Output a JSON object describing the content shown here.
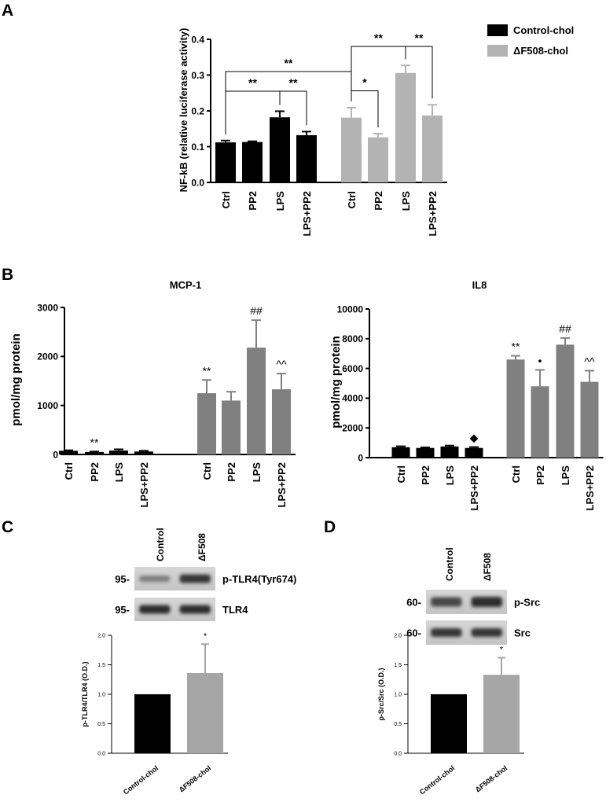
{
  "panels": {
    "A": "A",
    "B": "B",
    "C": "C",
    "D": "D"
  },
  "colors": {
    "control": "#000000",
    "df508_A": "#b3b3b3",
    "df508_B": "#808080",
    "df508_CD": "#a6a6a6"
  },
  "chart_data": [
    {
      "id": "A",
      "type": "bar",
      "title": "",
      "ylabel": "NF-kB (relative luciferase activity)",
      "xlabel": "",
      "ylim": [
        0,
        0.4
      ],
      "yticks": [
        "0.0",
        "0.1",
        "0.2",
        "0.3",
        "0.4"
      ],
      "ytick_values": [
        0,
        0.1,
        0.2,
        0.3,
        0.4
      ],
      "categories": [
        "Ctrl",
        "PP2",
        "LPS",
        "LPS+PP2",
        "Ctrl",
        "PP2",
        "LPS",
        "LPS+PP2"
      ],
      "groups": [
        "Control-chol",
        "Control-chol",
        "Control-chol",
        "Control-chol",
        "ΔF508-chol",
        "ΔF508-chol",
        "ΔF508-chol",
        "ΔF508-chol"
      ],
      "values": [
        0.112,
        0.113,
        0.182,
        0.132,
        0.181,
        0.126,
        0.306,
        0.187
      ],
      "errors": [
        0.005,
        0.002,
        0.017,
        0.01,
        0.028,
        0.01,
        0.021,
        0.03
      ],
      "legend": [
        {
          "name": "Control-chol",
          "color": "#000000"
        },
        {
          "name": "ΔF508-chol",
          "color": "#b3b3b3"
        }
      ],
      "legend_position": "top-right",
      "annotations": [
        {
          "text": "**",
          "from": 0,
          "to": 2
        },
        {
          "text": "**",
          "from": 2,
          "to": 3
        },
        {
          "text": "**",
          "from": 0,
          "to": 4
        },
        {
          "text": "*",
          "from": 4,
          "to": 5
        },
        {
          "text": "**",
          "from": 4,
          "to": 6
        },
        {
          "text": "**",
          "from": 6,
          "to": 7
        }
      ]
    },
    {
      "id": "B1",
      "type": "bar",
      "title": "MCP-1",
      "ylabel": "pmol/mg protein",
      "xlabel": "",
      "ylim": [
        0,
        3000
      ],
      "yticks": [
        "0",
        "1000",
        "2000",
        "3000"
      ],
      "ytick_values": [
        0,
        1000,
        2000,
        3000
      ],
      "categories": [
        "Ctrl",
        "PP2",
        "LPS",
        "LPS+PP2",
        "Ctrl",
        "PP2",
        "LPS",
        "LPS+PP2"
      ],
      "groups": [
        "Control-chol",
        "Control-chol",
        "Control-chol",
        "Control-chol",
        "ΔF508-chol",
        "ΔF508-chol",
        "ΔF508-chol",
        "ΔF508-chol"
      ],
      "values": [
        75,
        50,
        80,
        60,
        1250,
        1100,
        2180,
        1330
      ],
      "errors": [
        10,
        10,
        25,
        15,
        270,
        180,
        560,
        320
      ],
      "marks": [
        "",
        "**",
        "",
        "",
        "**",
        "",
        "##",
        "^^"
      ]
    },
    {
      "id": "B2",
      "type": "bar",
      "title": "IL8",
      "ylabel": "pmol/mg protein",
      "xlabel": "",
      "ylim": [
        0,
        10000
      ],
      "yticks": [
        "0",
        "2000",
        "4000",
        "6000",
        "8000",
        "10000"
      ],
      "ytick_values": [
        0,
        2000,
        4000,
        6000,
        8000,
        10000
      ],
      "categories": [
        "Ctrl",
        "PP2",
        "LPS",
        "LPS+PP2",
        "Ctrl",
        "PP2",
        "LPS",
        "LPS+PP2"
      ],
      "groups": [
        "Control-chol",
        "Control-chol",
        "Control-chol",
        "Control-chol",
        "ΔF508-chol",
        "ΔF508-chol",
        "ΔF508-chol",
        "ΔF508-chol"
      ],
      "values": [
        700,
        650,
        750,
        650,
        6600,
        4800,
        7600,
        5100
      ],
      "errors": [
        60,
        40,
        60,
        60,
        250,
        1100,
        450,
        750
      ],
      "marks": [
        "",
        "",
        "",
        "◆",
        "**",
        "•",
        "##",
        "^^"
      ]
    },
    {
      "id": "C",
      "type": "bar",
      "title": "",
      "ylabel": "p-TLR4/TLR4 (O.D.)",
      "xlabel": "",
      "ylim": [
        0,
        2.0
      ],
      "yticks": [
        "0.0",
        "0.5",
        "1.0",
        "1.5",
        "2.0"
      ],
      "ytick_values": [
        0,
        0.5,
        1.0,
        1.5,
        2.0
      ],
      "categories": [
        "Control-chol",
        "ΔF508-chol"
      ],
      "values": [
        1.0,
        1.36
      ],
      "errors": [
        0,
        0.49
      ],
      "marks": [
        "",
        "*"
      ]
    },
    {
      "id": "D",
      "type": "bar",
      "title": "",
      "ylabel": "p-Src/Src (O.D.)",
      "xlabel": "",
      "ylim": [
        0,
        2.0
      ],
      "yticks": [
        "0.0",
        "0.5",
        "1.0",
        "1.5",
        "2.0"
      ],
      "ytick_values": [
        0,
        0.5,
        1.0,
        1.5,
        2.0
      ],
      "categories": [
        "Control-chol",
        "ΔF508-chol"
      ],
      "values": [
        1.0,
        1.33
      ],
      "errors": [
        0,
        0.29
      ],
      "marks": [
        "",
        "*"
      ]
    }
  ],
  "blots": {
    "C": {
      "lanes": [
        "Control",
        "ΔF508"
      ],
      "rows": [
        {
          "mw": "95-",
          "label": "p-TLR4(Tyr674)"
        },
        {
          "mw": "95-",
          "label": "TLR4"
        }
      ]
    },
    "D": {
      "lanes": [
        "Control",
        "ΔF508"
      ],
      "rows": [
        {
          "mw": "60-",
          "label": "p-Src"
        },
        {
          "mw": "60-",
          "label": "Src"
        }
      ]
    }
  }
}
